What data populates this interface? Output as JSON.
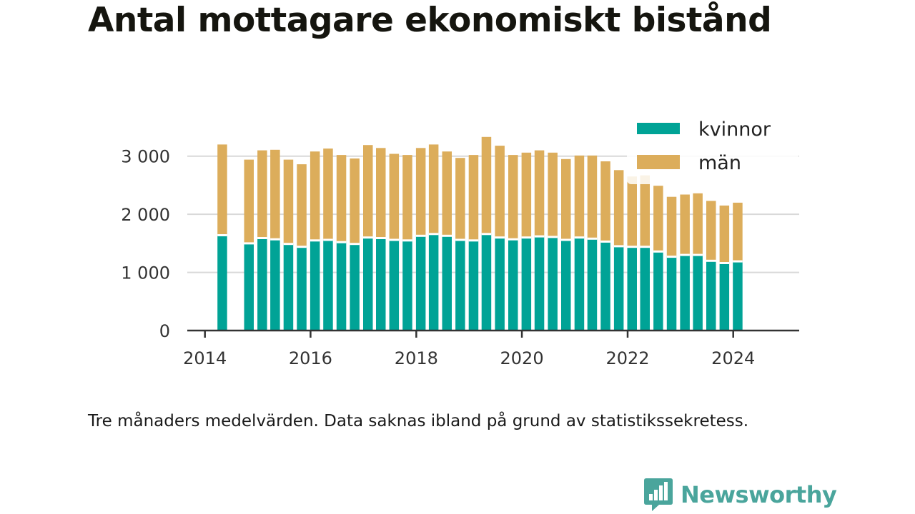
{
  "title": "Antal mottagare ekonomiskt bistånd",
  "caption": "Tre månaders medelvärden. Data saknas ibland på grund av statistikssekretess.",
  "brand": {
    "name": "Newsworthy",
    "icon": "newsworthy-logo-icon",
    "color": "#4aa59c"
  },
  "chart_data": {
    "type": "bar",
    "stacked": true,
    "x_type": "date",
    "xlim": [
      "2013-09-01",
      "2025-04-01"
    ],
    "ylim": [
      0,
      3500
    ],
    "yticks": [
      0,
      1000,
      2000,
      3000
    ],
    "ytick_labels": [
      "0",
      "1 000",
      "2 000",
      "3 000"
    ],
    "xticks": [
      "2014-01-01",
      "2016-01-01",
      "2018-01-01",
      "2020-01-01",
      "2022-01-01",
      "2024-01-01"
    ],
    "xtick_labels": [
      "2014",
      "2016",
      "2018",
      "2020",
      "2022",
      "2024"
    ],
    "grid": true,
    "legend_position": "top-right",
    "x": [
      "2014-05-01",
      "2014-11-01",
      "2015-02-01",
      "2015-05-01",
      "2015-08-01",
      "2015-11-01",
      "2016-02-01",
      "2016-05-01",
      "2016-08-01",
      "2016-11-01",
      "2017-02-01",
      "2017-05-01",
      "2017-08-01",
      "2017-11-01",
      "2018-02-01",
      "2018-05-01",
      "2018-08-01",
      "2018-11-01",
      "2019-02-01",
      "2019-05-01",
      "2019-08-01",
      "2019-11-01",
      "2020-02-01",
      "2020-05-01",
      "2020-08-01",
      "2020-11-01",
      "2021-02-01",
      "2021-05-01",
      "2021-08-01",
      "2021-11-01",
      "2022-02-01",
      "2022-05-01",
      "2022-08-01",
      "2022-11-01",
      "2023-02-01",
      "2023-05-01",
      "2023-08-01",
      "2023-11-01",
      "2024-02-01"
    ],
    "series": [
      {
        "name": "kvinnor",
        "color": "#00a396",
        "values": [
          1640,
          1500,
          1590,
          1570,
          1490,
          1440,
          1550,
          1560,
          1520,
          1490,
          1600,
          1590,
          1560,
          1550,
          1630,
          1660,
          1630,
          1560,
          1550,
          1660,
          1600,
          1570,
          1600,
          1620,
          1610,
          1560,
          1600,
          1580,
          1530,
          1450,
          1440,
          1440,
          1360,
          1270,
          1300,
          1300,
          1200,
          1160,
          1190
        ]
      },
      {
        "name": "män",
        "color": "#dcad5b",
        "values": [
          1560,
          1440,
          1510,
          1540,
          1450,
          1420,
          1530,
          1570,
          1500,
          1470,
          1590,
          1550,
          1480,
          1470,
          1510,
          1540,
          1450,
          1410,
          1470,
          1670,
          1580,
          1450,
          1460,
          1480,
          1450,
          1390,
          1410,
          1430,
          1380,
          1310,
          1210,
          1230,
          1130,
          1030,
          1040,
          1060,
          1030,
          990,
          1010
        ]
      }
    ]
  }
}
